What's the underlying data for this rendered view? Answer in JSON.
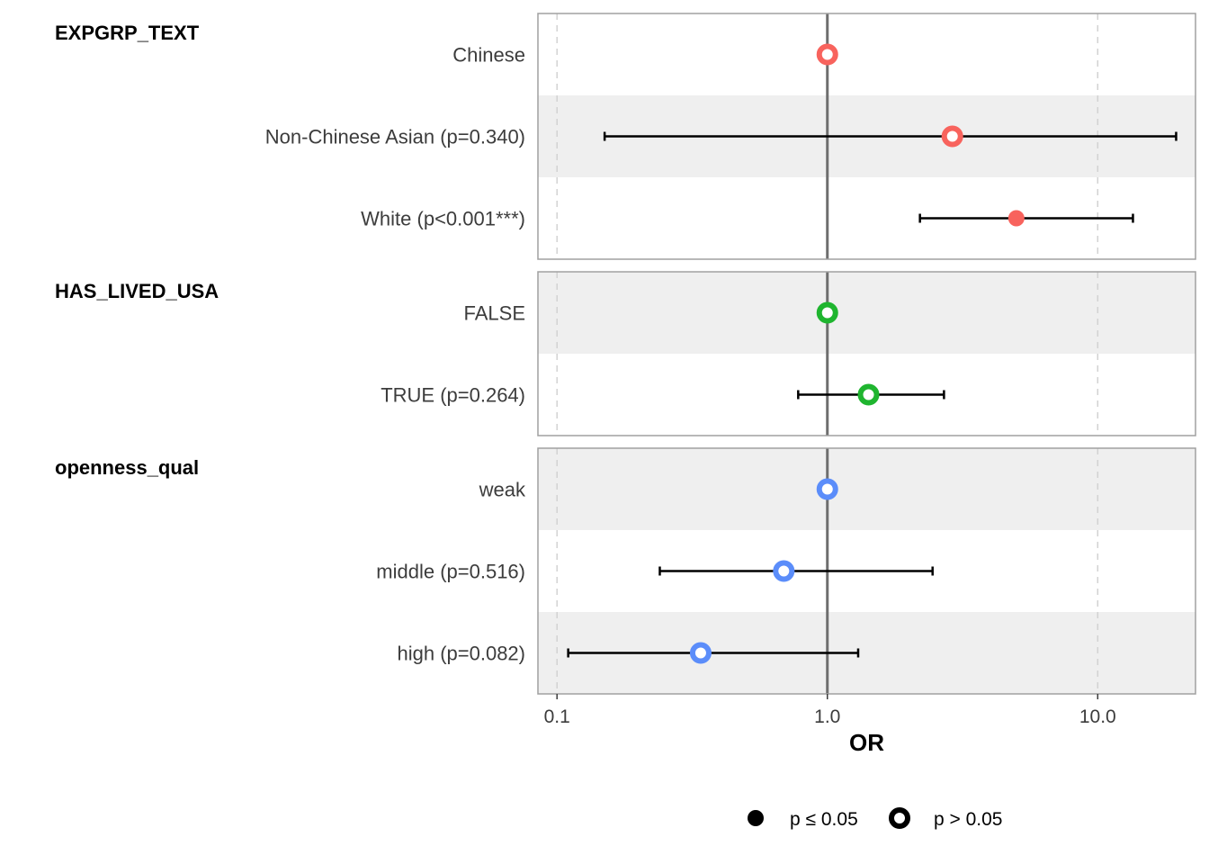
{
  "chart_data": {
    "type": "forest",
    "x_label": "OR",
    "x_scale": "log10",
    "x_ticks": [
      0.1,
      1.0,
      10.0
    ],
    "x_tick_labels": [
      "0.1",
      "1.0",
      "10.0"
    ],
    "xlim": [
      0.085,
      23
    ],
    "reference_line": 1.0,
    "groups": [
      {
        "name": "EXPGRP_TEXT",
        "color": "#f8635d",
        "rows": [
          {
            "label": "Chinese",
            "or": 1.0,
            "low": null,
            "high": null,
            "significant": false
          },
          {
            "label": "Non-Chinese Asian (p=0.340)",
            "or": 2.9,
            "low": 0.15,
            "high": 19.5,
            "significant": false
          },
          {
            "label": "White (p<0.001***)",
            "or": 5.0,
            "low": 2.2,
            "high": 13.5,
            "significant": true
          }
        ]
      },
      {
        "name": "HAS_LIVED_USA",
        "color": "#1fb52f",
        "rows": [
          {
            "label": "FALSE",
            "or": 1.0,
            "low": null,
            "high": null,
            "significant": false
          },
          {
            "label": "TRUE (p=0.264)",
            "or": 1.42,
            "low": 0.78,
            "high": 2.7,
            "significant": false
          }
        ]
      },
      {
        "name": "openness_qual",
        "color": "#5b8dfa",
        "rows": [
          {
            "label": "weak",
            "or": 1.0,
            "low": null,
            "high": null,
            "significant": false
          },
          {
            "label": "middle (p=0.516)",
            "or": 0.69,
            "low": 0.24,
            "high": 2.45,
            "significant": false
          },
          {
            "label": "high (p=0.082)",
            "or": 0.34,
            "low": 0.11,
            "high": 1.3,
            "significant": false
          }
        ]
      }
    ],
    "legend": {
      "position": "bottom",
      "items": [
        {
          "label": "p ≤ 0.05",
          "shape": "filled-circle"
        },
        {
          "label": "p > 0.05",
          "shape": "open-circle"
        }
      ]
    }
  }
}
